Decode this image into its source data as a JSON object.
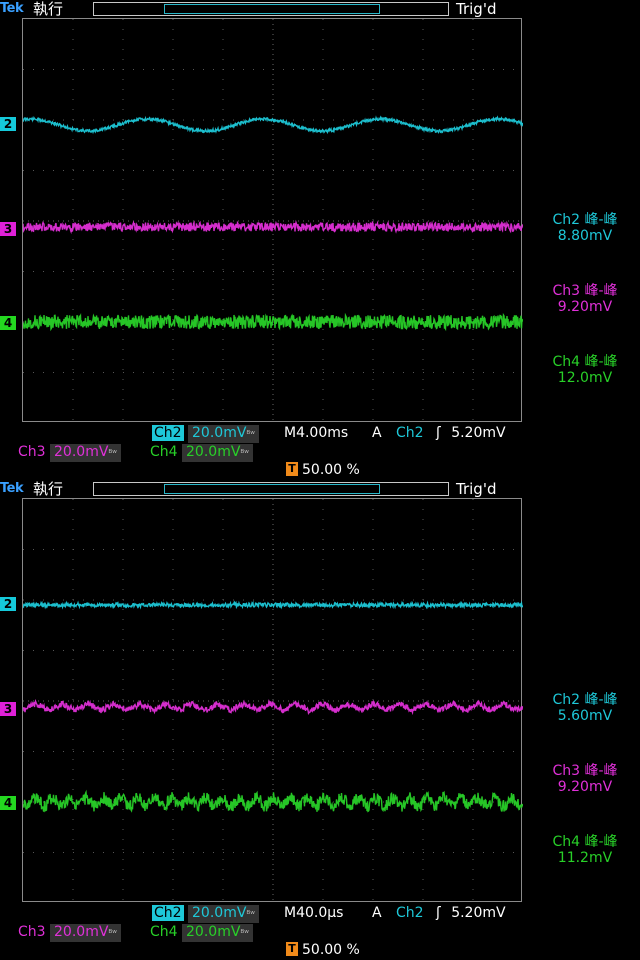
{
  "colors": {
    "ch2": "#1ec8d8",
    "ch3": "#e030d8",
    "ch4": "#28d028",
    "trigger": "#f08a1a",
    "brand": "#3aa0ff"
  },
  "icons": {
    "rising_edge": "rising-edge-icon",
    "bandwidth_limit": "bandwidth-limit-icon",
    "trigger_marker": "trigger-t-icon"
  },
  "panels": [
    {
      "brand": "Tek",
      "mode": "執行",
      "trig_status": "Trig'd",
      "markers": {
        "ch2": "2",
        "ch3": "3",
        "ch4": "4",
        "trigger": "T"
      },
      "measurements": [
        {
          "name": "Ch2 峰-峰",
          "value": "8.80mV"
        },
        {
          "name": "Ch3 峰-峰",
          "value": "9.20mV"
        },
        {
          "name": "Ch4 峰-峰",
          "value": "12.0mV"
        }
      ],
      "status": {
        "ch2_label": "Ch2",
        "ch2_scale": "20.0mV",
        "timebase": "M4.00ms",
        "trig_mode": "A",
        "trig_source": "Ch2",
        "trig_slope": "ʃ",
        "trig_level": "5.20mV",
        "ch3_label": "Ch3",
        "ch3_scale": "20.0mV",
        "ch4_label": "Ch4",
        "ch4_scale": "20.0mV",
        "bw_symbol": "ᴮʷ",
        "trig_position": "50.00 %"
      }
    },
    {
      "brand": "Tek",
      "mode": "執行",
      "trig_status": "Trig'd",
      "markers": {
        "ch2": "2",
        "ch3": "3",
        "ch4": "4",
        "trigger": "T"
      },
      "measurements": [
        {
          "name": "Ch2 峰-峰",
          "value": "5.60mV"
        },
        {
          "name": "Ch3 峰-峰",
          "value": "9.20mV"
        },
        {
          "name": "Ch4 峰-峰",
          "value": "11.2mV"
        }
      ],
      "status": {
        "ch2_label": "Ch2",
        "ch2_scale": "20.0mV",
        "timebase": "M40.0µs",
        "trig_mode": "A",
        "trig_source": "Ch2",
        "trig_slope": "ʃ",
        "trig_level": "5.20mV",
        "ch3_label": "Ch3",
        "ch3_scale": "20.0mV",
        "ch4_label": "Ch4",
        "ch4_scale": "20.0mV",
        "bw_symbol": "ᴮʷ",
        "trig_position": "50.00 %"
      }
    }
  ]
}
